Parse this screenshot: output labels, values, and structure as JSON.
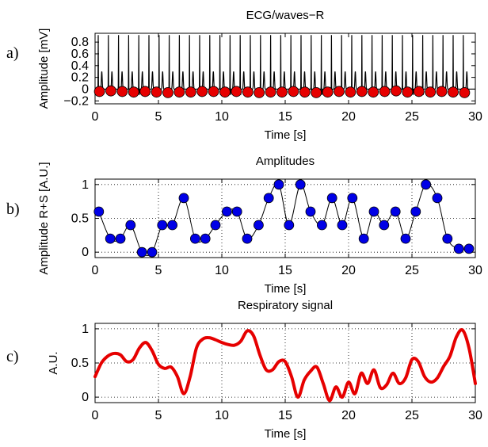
{
  "chart_data": [
    {
      "panel_label": "a)",
      "type": "line",
      "title": "ECG/waves−R",
      "xlabel": "Time [s]",
      "ylabel": "Amplitude [mV]",
      "xlim": [
        0,
        30
      ],
      "ylim": [
        -0.25,
        0.95
      ],
      "xticks": [
        "0",
        "5",
        "10",
        "15",
        "20",
        "25",
        "30"
      ],
      "yticks": [
        "−0.2",
        "0",
        "0.2",
        "0.4",
        "0.6",
        "0.8"
      ],
      "grid": false,
      "series": [
        {
          "kind": "line",
          "color": "#000000",
          "r_peak_times": [
            0.25,
            1.05,
            1.85,
            2.65,
            3.45,
            4.25,
            5.05,
            5.85,
            6.65,
            7.45,
            8.25,
            9.05,
            9.85,
            10.65,
            11.45,
            12.25,
            13.05,
            13.85,
            14.65,
            15.45,
            16.25,
            17.05,
            17.85,
            18.65,
            19.45,
            20.25,
            21.05,
            21.85,
            22.65,
            23.45,
            24.25,
            25.05,
            25.85,
            26.65,
            27.45,
            28.25,
            29.05
          ],
          "r_peak_amplitude": 0.92,
          "t_wave_amplitude": 0.3,
          "s_wave_amplitude": -0.1
        },
        {
          "kind": "markers",
          "color": "#e60000",
          "x": [
            0.35,
            1.25,
            2.15,
            3.05,
            3.95,
            4.85,
            5.75,
            6.65,
            7.55,
            8.45,
            9.35,
            10.25,
            11.15,
            12.05,
            12.95,
            13.85,
            14.75,
            15.65,
            16.55,
            17.45,
            18.35,
            19.25,
            20.15,
            21.05,
            21.95,
            22.85,
            23.75,
            24.65,
            25.55,
            26.45,
            27.35,
            28.25,
            29.15
          ],
          "y": [
            -0.04,
            -0.03,
            -0.04,
            -0.05,
            -0.04,
            -0.05,
            -0.06,
            -0.05,
            -0.05,
            -0.04,
            -0.04,
            -0.05,
            -0.04,
            -0.05,
            -0.06,
            -0.05,
            -0.05,
            -0.04,
            -0.05,
            -0.06,
            -0.05,
            -0.04,
            -0.05,
            -0.04,
            -0.05,
            -0.04,
            -0.03,
            -0.05,
            -0.04,
            -0.05,
            -0.04,
            -0.05,
            -0.06
          ]
        }
      ]
    },
    {
      "panel_label": "b)",
      "type": "line",
      "title": "Amplitudes",
      "xlabel": "Time [s]",
      "ylabel": "Amplitude R+S [A.U.]",
      "xlim": [
        0,
        30
      ],
      "ylim": [
        -0.08,
        1.08
      ],
      "xticks": [
        "0",
        "5",
        "10",
        "15",
        "20",
        "25",
        "30"
      ],
      "yticks": [
        "0",
        "0.5",
        "1"
      ],
      "grid": true,
      "series": [
        {
          "kind": "line+markers",
          "line_color": "#000000",
          "marker_color": "#0000e6",
          "x": [
            0.3,
            1.2,
            2.0,
            2.8,
            3.7,
            4.5,
            5.3,
            6.1,
            7.0,
            7.9,
            8.7,
            9.5,
            10.4,
            11.2,
            12.0,
            12.9,
            13.7,
            14.5,
            15.3,
            16.2,
            17.0,
            17.9,
            18.7,
            19.5,
            20.3,
            21.2,
            22.0,
            22.8,
            23.7,
            24.5,
            25.3,
            26.1,
            27.0,
            27.8,
            28.7,
            29.5
          ],
          "y": [
            0.6,
            0.2,
            0.2,
            0.4,
            0.0,
            0.0,
            0.4,
            0.4,
            0.8,
            0.2,
            0.2,
            0.4,
            0.6,
            0.6,
            0.2,
            0.4,
            0.8,
            1.0,
            0.4,
            1.0,
            0.6,
            0.4,
            0.8,
            0.4,
            0.8,
            0.2,
            0.6,
            0.4,
            0.6,
            0.2,
            0.6,
            1.0,
            0.8,
            0.2,
            0.05,
            0.05
          ]
        }
      ]
    },
    {
      "panel_label": "c)",
      "type": "line",
      "title": "Respiratory signal",
      "xlabel": "Time [s]",
      "ylabel": "A.U.",
      "xlim": [
        0,
        30
      ],
      "ylim": [
        -0.08,
        1.08
      ],
      "xticks": [
        "0",
        "5",
        "10",
        "15",
        "20",
        "25",
        "30"
      ],
      "yticks": [
        "0",
        "0.5",
        "1"
      ],
      "grid": true,
      "series": [
        {
          "kind": "line",
          "color": "#e60000",
          "x": [
            0,
            0.5,
            1,
            1.5,
            2,
            2.5,
            3,
            3.5,
            4,
            4.5,
            5,
            5.5,
            6,
            6.5,
            7,
            7.5,
            8,
            8.5,
            9,
            9.5,
            10,
            10.5,
            11,
            11.5,
            12,
            12.5,
            13,
            13.5,
            14,
            14.5,
            15,
            15.5,
            16,
            16.5,
            17,
            17.5,
            18,
            18.5,
            19,
            19.5,
            20,
            20.5,
            21,
            21.5,
            22,
            22.5,
            23,
            23.5,
            24,
            24.5,
            25,
            25.5,
            26,
            26.5,
            27,
            27.5,
            28,
            28.5,
            29,
            29.5,
            30
          ],
          "y": [
            0.3,
            0.5,
            0.6,
            0.64,
            0.62,
            0.52,
            0.55,
            0.72,
            0.8,
            0.68,
            0.48,
            0.42,
            0.44,
            0.3,
            0.05,
            0.3,
            0.72,
            0.85,
            0.87,
            0.84,
            0.8,
            0.77,
            0.76,
            0.82,
            0.97,
            0.9,
            0.62,
            0.4,
            0.4,
            0.52,
            0.52,
            0.3,
            0.0,
            0.25,
            0.38,
            0.44,
            0.2,
            -0.05,
            0.15,
            0.0,
            0.22,
            0.05,
            0.35,
            0.2,
            0.4,
            0.14,
            0.18,
            0.35,
            0.2,
            0.28,
            0.55,
            0.52,
            0.3,
            0.22,
            0.28,
            0.45,
            0.6,
            0.88,
            0.98,
            0.72,
            0.2
          ]
        }
      ]
    }
  ]
}
